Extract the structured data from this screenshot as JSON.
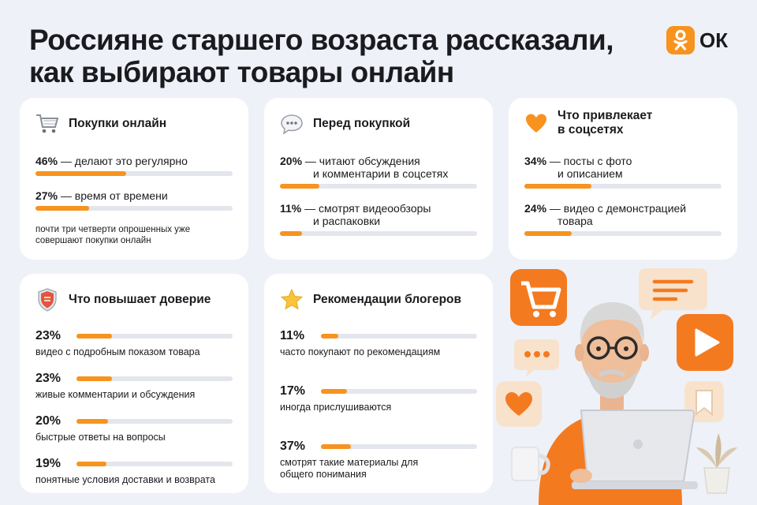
{
  "title_line1": "Россияне старшего возраста рассказали,",
  "title_line2": "как выбирают товары онлайн",
  "logo": {
    "text": "ОК",
    "icon": "ok-logo-icon"
  },
  "colors": {
    "accent": "#f7931e",
    "track": "#e3e6ec",
    "card": "#ffffff",
    "background": "#eef1f7"
  },
  "cards": {
    "shopping": {
      "title": "Покупки онлайн",
      "icon": "cart-icon",
      "stats": [
        {
          "pct": "46%",
          "text": " — делают это регулярно",
          "value": 46
        },
        {
          "pct": "27%",
          "text": " — время от времени",
          "value": 27
        }
      ],
      "note": "почти три четверти опрошенных уже совершают покупки онлайн"
    },
    "before": {
      "title": "Перед покупкой",
      "icon": "chat-bubble-icon",
      "stats": [
        {
          "pct": "20%",
          "text1": " — читают обсуждения",
          "text2": "и комментарии в соцсетях",
          "value": 20
        },
        {
          "pct": "11%",
          "text1": " — смотрят видеообзоры",
          "text2": "и распаковки",
          "value": 11
        }
      ]
    },
    "social": {
      "title1": "Что привлекает",
      "title2": "в соцсетях",
      "icon": "heart-icon",
      "stats": [
        {
          "pct": "34%",
          "text1": " — посты с фото",
          "text2": "и описанием",
          "value": 34
        },
        {
          "pct": "24%",
          "text1": " — видео с демонстрацией",
          "text2": "товара",
          "value": 24
        }
      ]
    },
    "trust": {
      "title": "Что повышает доверие",
      "icon": "shield-icon",
      "rows": [
        {
          "pct": "23%",
          "cap": "видео с подробным показом товара",
          "value": 23
        },
        {
          "pct": "23%",
          "cap": "живые комментарии и обсуждения",
          "value": 23
        },
        {
          "pct": "20%",
          "cap": "быстрые ответы на вопросы",
          "value": 20
        },
        {
          "pct": "19%",
          "cap": "понятные условия доставки и возврата",
          "value": 19
        }
      ]
    },
    "bloggers": {
      "title": "Рекомендации блогеров",
      "icon": "star-icon",
      "rows": [
        {
          "pct": "11%",
          "cap": "часто покупают по рекомендациям",
          "value": 11
        },
        {
          "pct": "17%",
          "cap": "иногда прислушиваются",
          "value": 17
        },
        {
          "pct": "37%",
          "cap1": "смотрят такие материалы для",
          "cap2": "общего понимания",
          "value": 37
        }
      ]
    }
  }
}
